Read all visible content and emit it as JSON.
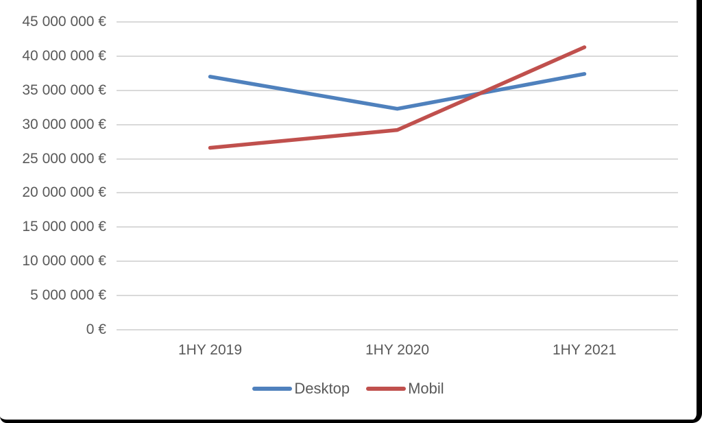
{
  "chart_data": {
    "type": "line",
    "title": "",
    "categories": [
      "1HY 2019",
      "1HY 2020",
      "1HY 2021"
    ],
    "series": [
      {
        "name": "Desktop",
        "color": "#4F81BD",
        "values": [
          37000000,
          32300000,
          37400000
        ]
      },
      {
        "name": "Mobil",
        "color": "#C0504D",
        "values": [
          26600000,
          29200000,
          41300000
        ]
      }
    ],
    "y_axis": {
      "min": 0,
      "max": 45000000,
      "step": 5000000,
      "tick_labels": [
        "0 €",
        "5 000 000 €",
        "10 000 000 €",
        "15 000 000 €",
        "20 000 000 €",
        "25 000 000 €",
        "30 000 000 €",
        "35 000 000 €",
        "40 000 000 €",
        "45 000 000 €"
      ]
    },
    "xlabel": "",
    "ylabel": "",
    "grid": true,
    "legend_position": "bottom"
  },
  "styles": {
    "text_color": "#595959",
    "gridline_color": "#D9D9D9",
    "background": "#FFFFFF",
    "frame_border_color": "#000000"
  }
}
